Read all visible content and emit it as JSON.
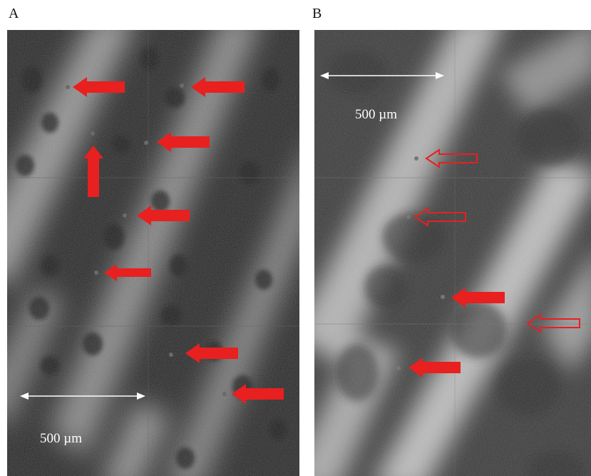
{
  "panels": [
    {
      "label": "A",
      "scale_label": "500 µm"
    },
    {
      "label": "B",
      "scale_label": "500 µm"
    }
  ],
  "colors": {
    "arrow_red": "#e8201f",
    "scale_bar": "#ffffff",
    "background": "#ffffff"
  },
  "marker_legend": {
    "filled_arrow": "solid red arrow",
    "hollow_arrow": "red outlined arrow"
  }
}
